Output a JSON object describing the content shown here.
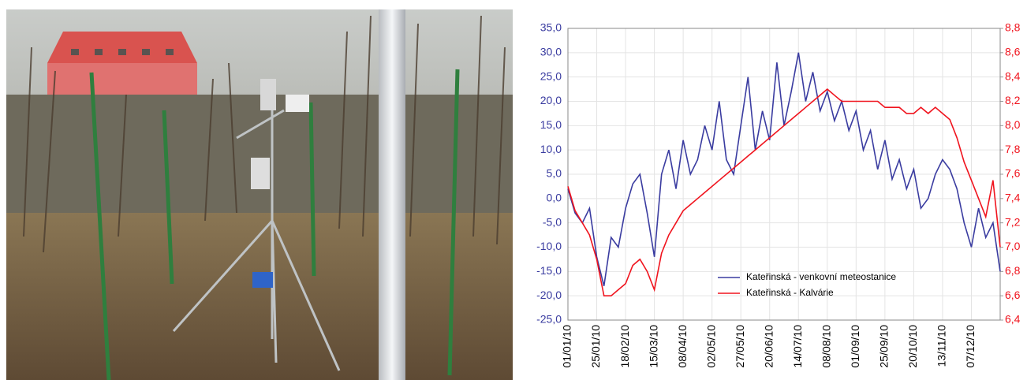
{
  "chart_data": {
    "type": "line",
    "categories": [
      "01/01/10",
      null,
      null,
      null,
      "25/01/10",
      null,
      null,
      null,
      "18/02/10",
      null,
      null,
      null,
      "15/03/10",
      null,
      null,
      null,
      "08/04/10",
      null,
      null,
      null,
      "02/05/10",
      null,
      null,
      null,
      "27/05/10",
      null,
      null,
      null,
      "20/06/10",
      null,
      null,
      null,
      "14/07/10",
      null,
      null,
      null,
      "08/08/10",
      null,
      null,
      null,
      "01/09/10",
      null,
      null,
      null,
      "25/09/10",
      null,
      null,
      null,
      "20/10/10",
      null,
      null,
      null,
      "13/11/10",
      null,
      null,
      null,
      "07/12/10",
      null,
      null,
      null,
      null
    ],
    "series": [
      {
        "name": "Kateřinská - venkovní meteostanice",
        "color": "#3a3ca0",
        "values": [
          2,
          -3,
          -5,
          -2,
          -12,
          -18,
          -8,
          -10,
          -2,
          3,
          5,
          -3,
          -12,
          5,
          10,
          2,
          12,
          5,
          8,
          15,
          10,
          20,
          8,
          5,
          15,
          25,
          10,
          18,
          12,
          28,
          15,
          22,
          30,
          20,
          26,
          18,
          22,
          16,
          20,
          14,
          18,
          10,
          14,
          6,
          12,
          4,
          8,
          2,
          6,
          -2,
          0,
          5,
          8,
          6,
          2,
          -5,
          -10,
          -2,
          -8,
          -5,
          -15
        ]
      },
      {
        "name": "Kateřinská - Kalvárie",
        "color": "#f0141e",
        "axis": "y2",
        "values": [
          7.5,
          7.3,
          7.2,
          7.1,
          6.9,
          6.6,
          6.6,
          6.65,
          6.7,
          6.85,
          6.9,
          6.8,
          6.65,
          6.95,
          7.1,
          7.2,
          7.3,
          7.35,
          7.4,
          7.45,
          7.5,
          7.55,
          7.6,
          7.65,
          7.7,
          7.75,
          7.8,
          7.85,
          7.9,
          7.95,
          8.0,
          8.05,
          8.1,
          8.15,
          8.2,
          8.25,
          8.3,
          8.25,
          8.2,
          8.2,
          8.2,
          8.2,
          8.2,
          8.2,
          8.15,
          8.15,
          8.15,
          8.1,
          8.1,
          8.15,
          8.1,
          8.15,
          8.1,
          8.05,
          7.9,
          7.7,
          7.55,
          7.4,
          7.25,
          7.55,
          7.0
        ]
      }
    ],
    "ylim": [
      -25,
      35
    ],
    "yticks": [
      {
        "value": -25,
        "label": "-25,0"
      },
      {
        "value": -20,
        "label": "-20,0"
      },
      {
        "value": -15,
        "label": "-15,0"
      },
      {
        "value": -10,
        "label": "-10,0"
      },
      {
        "value": -5,
        "label": "-5,0"
      },
      {
        "value": 0,
        "label": "0,0"
      },
      {
        "value": 5,
        "label": "5,0"
      },
      {
        "value": 10,
        "label": "10,0"
      },
      {
        "value": 15,
        "label": "15,0"
      },
      {
        "value": 20,
        "label": "20,0"
      },
      {
        "value": 25,
        "label": "25,0"
      },
      {
        "value": 30,
        "label": "30,0"
      },
      {
        "value": 35,
        "label": "35,0"
      }
    ],
    "y2lim": [
      6.4,
      8.8
    ],
    "y2ticks": [
      {
        "value": 6.4,
        "label": "6,4"
      },
      {
        "value": 6.6,
        "label": "6,6"
      },
      {
        "value": 6.8,
        "label": "6,8"
      },
      {
        "value": 7.0,
        "label": "7,0"
      },
      {
        "value": 7.2,
        "label": "7,2"
      },
      {
        "value": 7.4,
        "label": "7,4"
      },
      {
        "value": 7.6,
        "label": "7,6"
      },
      {
        "value": 7.8,
        "label": "7,8"
      },
      {
        "value": 8.0,
        "label": "8,0"
      },
      {
        "value": 8.2,
        "label": "8,2"
      },
      {
        "value": 8.4,
        "label": "8,4"
      },
      {
        "value": 8.6,
        "label": "8,6"
      },
      {
        "value": 8.8,
        "label": "8,8"
      }
    ],
    "ytick_color": "#3a3ca0",
    "y2tick_color": "#f0141e",
    "grid": true,
    "legend": "lower center"
  }
}
